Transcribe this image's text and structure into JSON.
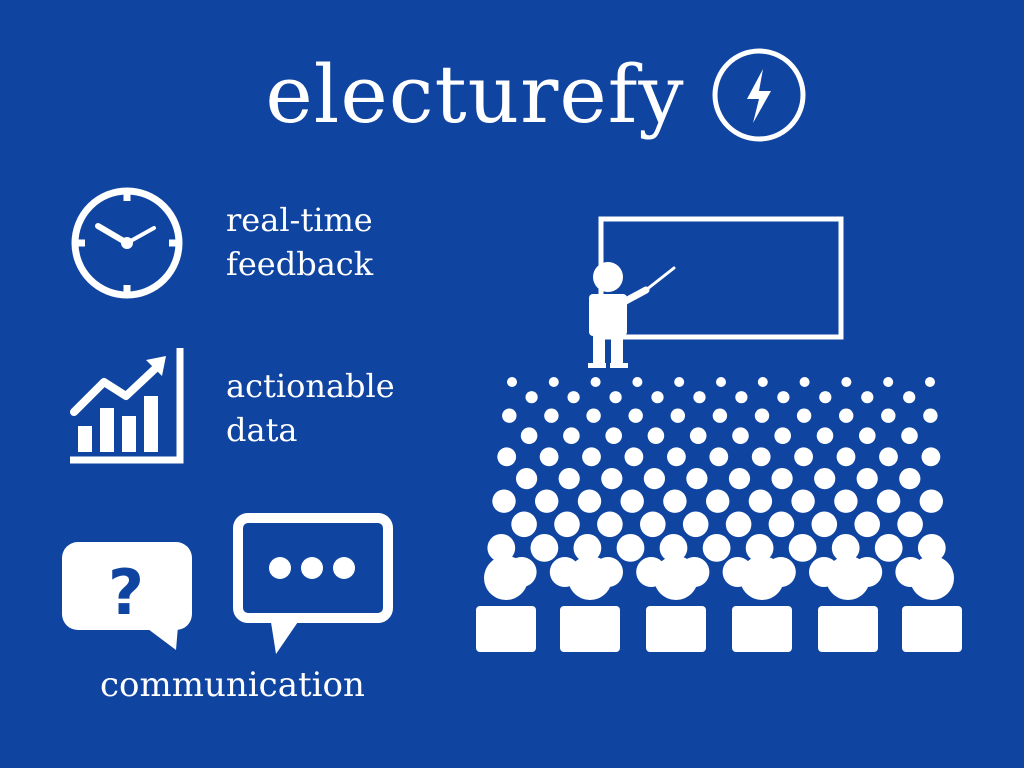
{
  "brand": {
    "name": "electurefy",
    "logo_icon": "lightning-bolt-circle-icon"
  },
  "features": [
    {
      "text": "real-time\nfeedback",
      "icon": "clock-icon"
    },
    {
      "text": "actionable\ndata",
      "icon": "growth-chart-icon"
    },
    {
      "text": "communication",
      "icons": [
        "question-bubble-icon",
        "ellipsis-chat-bubble-icon"
      ]
    }
  ],
  "illustration": {
    "icon": "lecture-hall-icon",
    "elements": [
      "whiteboard",
      "presenter-with-pointer",
      "audience"
    ]
  },
  "colors": {
    "background": "#0f44a0",
    "foreground": "#ffffff"
  }
}
